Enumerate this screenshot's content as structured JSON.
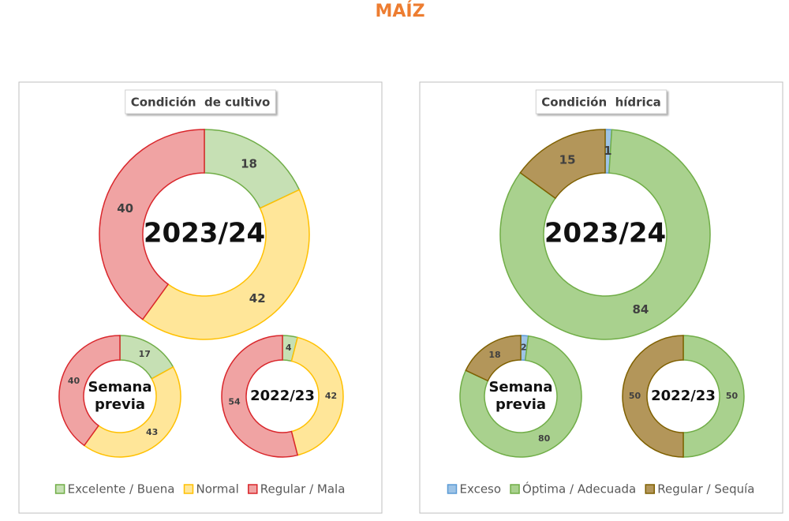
{
  "title": "MAÍZ",
  "chart_data": [
    {
      "type": "donut",
      "title": "Condición  de cultivo",
      "categories": [
        "Excelente / Buena",
        "Normal",
        "Regular / Mala"
      ],
      "colors": [
        "#c6e0b4",
        "#ffe699",
        "#f0a3a3"
      ],
      "stroke_colors": [
        "#70ad47",
        "#ffc000",
        "#d9262b"
      ],
      "series": [
        {
          "name": "2023/24",
          "values": [
            18,
            42,
            40
          ]
        },
        {
          "name": "Semana previa",
          "values": [
            17,
            43,
            40
          ]
        },
        {
          "name": "2022/23",
          "values": [
            4,
            42,
            54
          ]
        }
      ]
    },
    {
      "type": "donut",
      "title": "Condición  hídrica",
      "categories": [
        "Exceso",
        "Óptima / Adecuada",
        "Regular / Sequía"
      ],
      "colors": [
        "#9dc3e6",
        "#a9d18e",
        "#b3965a"
      ],
      "stroke_colors": [
        "#5b9bd5",
        "#70ad47",
        "#7f6000"
      ],
      "series": [
        {
          "name": "2023/24",
          "values": [
            1,
            84,
            15
          ]
        },
        {
          "name": "Semana previa",
          "values": [
            2,
            80,
            18
          ]
        },
        {
          "name": "2022/23",
          "values": [
            0,
            50,
            50
          ]
        }
      ]
    }
  ]
}
